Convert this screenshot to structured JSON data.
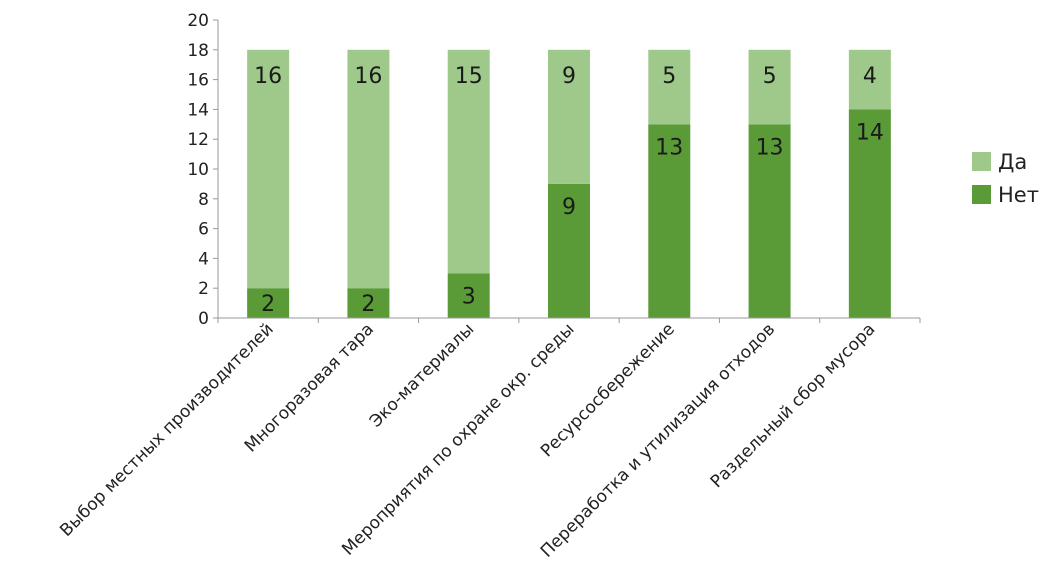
{
  "chart_data": {
    "type": "bar",
    "stacked": true,
    "categories": [
      "Выбор местных производителей",
      "Многоразовая тара",
      "Эко-материалы",
      "Мероприятия по охране окр. среды",
      "Ресурсосбережение",
      "Переработка и утилизация отходов",
      "Раздельный сбор мусора"
    ],
    "series": [
      {
        "name": "Нет",
        "values": [
          2,
          2,
          3,
          9,
          13,
          13,
          14
        ],
        "color": "#5a9a37"
      },
      {
        "name": "Да",
        "values": [
          16,
          16,
          15,
          9,
          5,
          5,
          4
        ],
        "color": "#9ec98a"
      }
    ],
    "y_ticks": [
      0,
      2,
      4,
      6,
      8,
      10,
      12,
      14,
      16,
      18,
      20
    ],
    "ylim": [
      0,
      20
    ],
    "legend_position": "right",
    "legend_order": [
      "Да",
      "Нет"
    ],
    "grid": false
  }
}
